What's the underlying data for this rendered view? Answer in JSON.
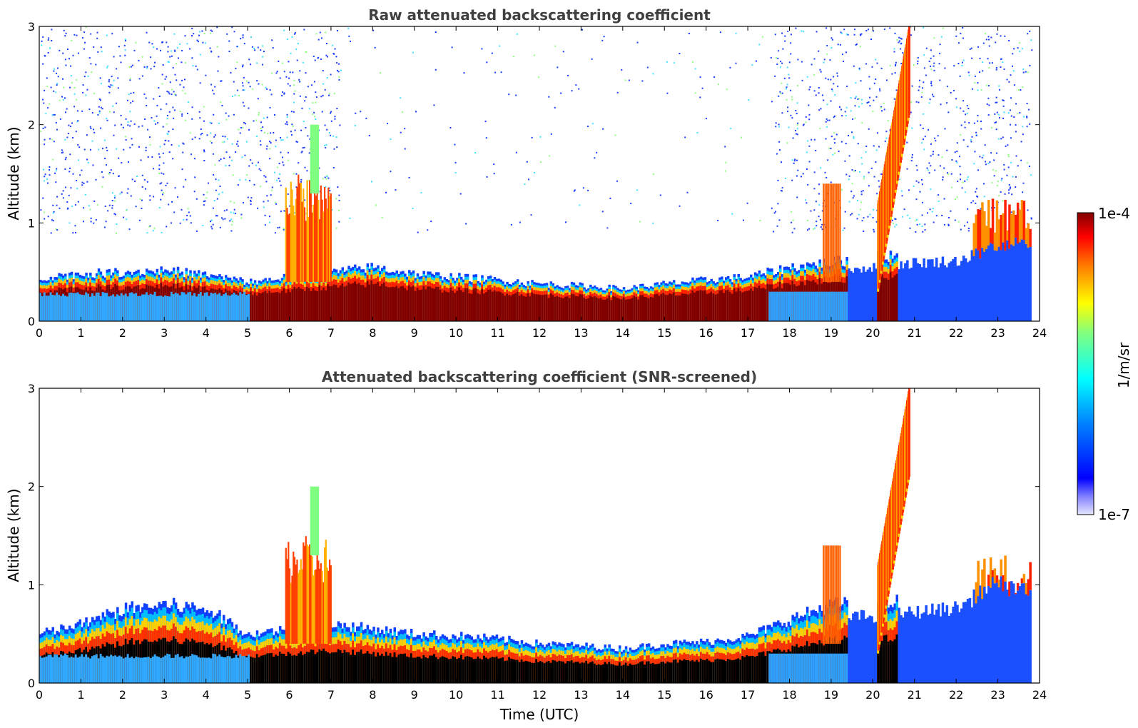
{
  "chart_data": [
    {
      "type": "heatmap",
      "title": "Raw attenuated backscattering coefficient",
      "ylabel": "Altitude (km)",
      "xlabel": "",
      "xlim": [
        0,
        24
      ],
      "ylim": [
        0,
        3
      ],
      "xticks": [
        "0",
        "1",
        "2",
        "3",
        "4",
        "5",
        "6",
        "7",
        "8",
        "9",
        "10",
        "11",
        "12",
        "13",
        "14",
        "15",
        "16",
        "17",
        "18",
        "19",
        "20",
        "21",
        "22",
        "23",
        "24"
      ],
      "yticks": [
        "0",
        "1",
        "2",
        "3"
      ],
      "screened": false,
      "layer_profile": {
        "x": [
          0,
          1,
          2,
          3,
          4,
          5,
          6,
          7,
          8,
          9,
          10,
          11,
          12,
          13,
          14,
          15,
          16,
          17,
          18,
          19,
          20,
          21,
          22,
          23,
          23.8
        ],
        "top_km": [
          0.45,
          0.48,
          0.5,
          0.52,
          0.47,
          0.4,
          0.45,
          0.5,
          0.55,
          0.48,
          0.45,
          0.42,
          0.38,
          0.36,
          0.33,
          0.38,
          0.42,
          0.45,
          0.55,
          0.6,
          0.65,
          0.7,
          0.72,
          0.9,
          0.95
        ]
      }
    },
    {
      "type": "heatmap",
      "title": "Attenuated backscattering coefficient (SNR-screened)",
      "ylabel": "Altitude (km)",
      "xlabel": "Time (UTC)",
      "xlim": [
        0,
        24
      ],
      "ylim": [
        0,
        3
      ],
      "xticks": [
        "0",
        "1",
        "2",
        "3",
        "4",
        "5",
        "6",
        "7",
        "8",
        "9",
        "10",
        "11",
        "12",
        "13",
        "14",
        "15",
        "16",
        "17",
        "18",
        "19",
        "20",
        "21",
        "22",
        "23",
        "24"
      ],
      "yticks": [
        "0",
        "1",
        "2",
        "3"
      ],
      "screened": true,
      "layer_profile": {
        "x": [
          0,
          1,
          2,
          3,
          4,
          5,
          6,
          7,
          8,
          9,
          10,
          11,
          12,
          13,
          14,
          15,
          16,
          17,
          18,
          19,
          20,
          21,
          22,
          23,
          23.8
        ],
        "top_km": [
          0.5,
          0.6,
          0.75,
          0.8,
          0.75,
          0.5,
          0.55,
          0.6,
          0.55,
          0.5,
          0.48,
          0.45,
          0.4,
          0.38,
          0.35,
          0.4,
          0.42,
          0.48,
          0.65,
          0.8,
          0.8,
          0.85,
          0.9,
          1.2,
          1.05
        ]
      }
    }
  ],
  "colorbar": {
    "max_label": "1e-4",
    "min_label": "1e-7",
    "unit_label": "1/m/sr",
    "colormap": "jet"
  },
  "colors": {
    "dark_red": "#7f0000",
    "red": "#ff0000",
    "yellow": "#ffff00",
    "cyan": "#00ffff",
    "blue": "#0000ff",
    "dark_blue": "#00007f",
    "light_blue": "#1e90ff",
    "black": "#000000"
  }
}
